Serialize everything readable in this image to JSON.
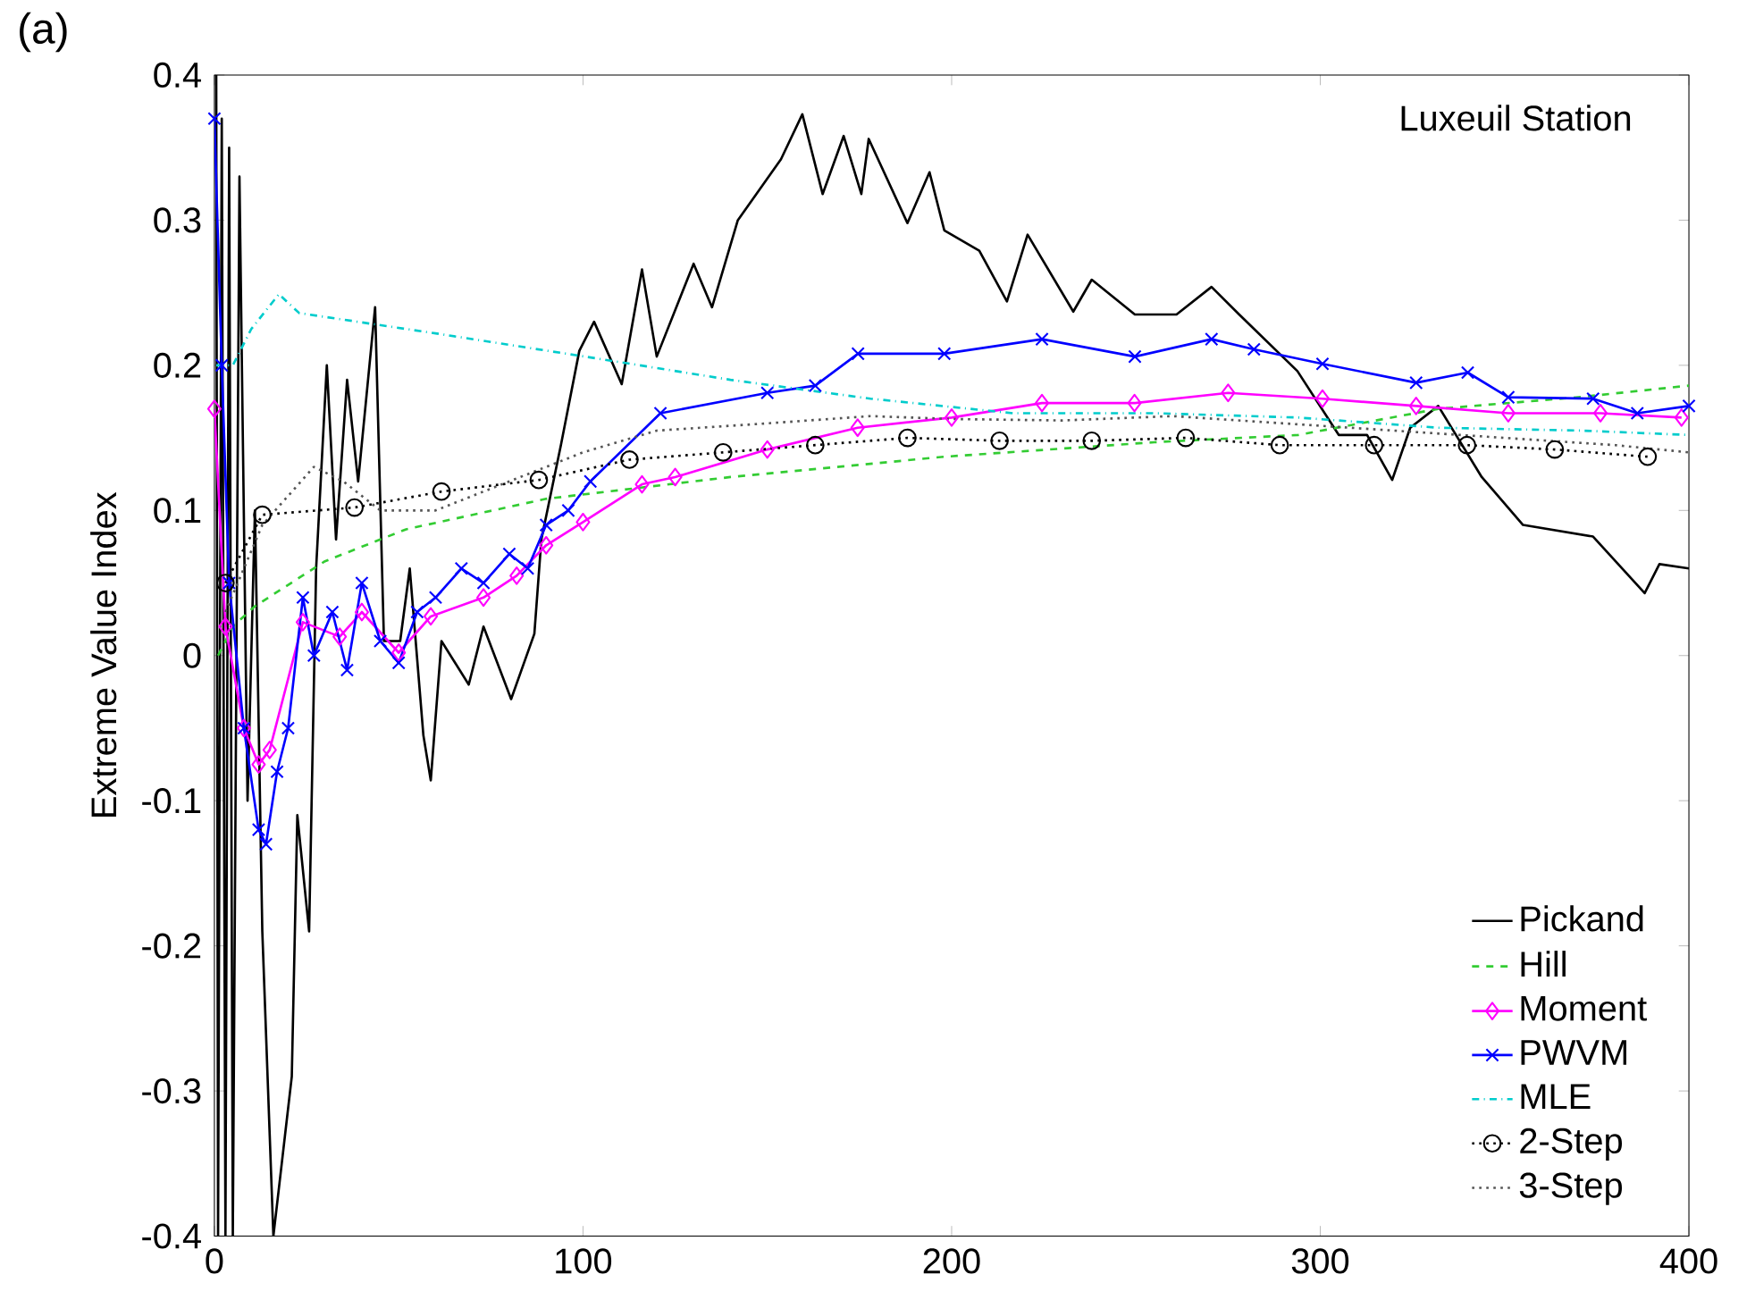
{
  "chart_data": {
    "type": "line",
    "title": "Luxeuil Station",
    "ylabel": "Extreme Value Index",
    "annotations": [
      "(a)"
    ],
    "xlim": [
      0,
      400
    ],
    "ylim": [
      -0.4,
      0.4
    ],
    "xticks": [
      0,
      100,
      200,
      300,
      400
    ],
    "yticks": [
      -0.4,
      -0.3,
      -0.2,
      -0.1,
      0,
      0.1,
      0.2,
      0.3,
      0.4
    ],
    "legend": "bottom right",
    "series": [
      {
        "name": "Pickand",
        "color": "#000000",
        "line_style": "solid",
        "marker": "none",
        "x": [
          0.5,
          1,
          2,
          3,
          4,
          5,
          6.8,
          9,
          11,
          13,
          16,
          21,
          22.5,
          25.7,
          27.6,
          30.5,
          33,
          36,
          39,
          43.6,
          46,
          50.4,
          53,
          56.7,
          58.7,
          61.6,
          69,
          73,
          80.5,
          86.8,
          88.7,
          94,
          99,
          103,
          110.5,
          116,
          120,
          130,
          135,
          142,
          153.7,
          159.5,
          165,
          170.7,
          175.5,
          177.5,
          188,
          194,
          198,
          207.5,
          215,
          220.6,
          233,
          238,
          249.7,
          261,
          270.5,
          278,
          293.8,
          305,
          312.7,
          319.5,
          324.4,
          332,
          343.8,
          355,
          374,
          388,
          392,
          400
        ],
        "values": [
          0.4,
          -0.4,
          0.37,
          -0.4,
          0.35,
          -0.4,
          0.33,
          -0.1,
          0.1,
          -0.19,
          -0.4,
          -0.29,
          -0.11,
          -0.19,
          0.06,
          0.2,
          0.08,
          0.19,
          0.12,
          0.24,
          0.01,
          0.01,
          0.06,
          -0.055,
          -0.086,
          0.01,
          -0.02,
          0.02,
          -0.03,
          0.015,
          0.08,
          0.145,
          0.21,
          0.23,
          0.187,
          0.266,
          0.206,
          0.27,
          0.24,
          0.3,
          0.342,
          0.373,
          0.318,
          0.358,
          0.318,
          0.356,
          0.298,
          0.333,
          0.293,
          0.279,
          0.244,
          0.29,
          0.237,
          0.259,
          0.235,
          0.235,
          0.254,
          0.235,
          0.196,
          0.152,
          0.152,
          0.121,
          0.157,
          0.172,
          0.123,
          0.09,
          0.082,
          0.043,
          0.063,
          0.06
        ]
      },
      {
        "name": "Hill",
        "color": "#33cc33",
        "line_style": "dashed",
        "marker": "none",
        "x": [
          1,
          5,
          11,
          30,
          52,
          90,
          140,
          198,
          255,
          294,
          332,
          370,
          400
        ],
        "values": [
          0.0,
          0.02,
          0.034,
          0.065,
          0.087,
          0.108,
          0.123,
          0.137,
          0.147,
          0.152,
          0.17,
          0.178,
          0.186
        ]
      },
      {
        "name": "Moment",
        "color": "#ff00ff",
        "line_style": "solid",
        "marker": "diamond",
        "x": [
          0,
          3,
          8,
          12,
          15,
          24,
          34,
          40,
          50,
          58.7,
          73,
          82,
          90,
          100,
          116,
          125,
          150,
          174.5,
          200,
          224.5,
          249.6,
          275,
          300.6,
          326,
          351,
          376,
          398
        ],
        "values": [
          0.17,
          0.02,
          -0.05,
          -0.075,
          -0.065,
          0.023,
          0.013,
          0.03,
          0.002,
          0.027,
          0.04,
          0.055,
          0.076,
          0.092,
          0.118,
          0.123,
          0.142,
          0.157,
          0.164,
          0.174,
          0.174,
          0.181,
          0.177,
          0.172,
          0.167,
          0.167,
          0.164
        ]
      },
      {
        "name": "PWVM",
        "color": "#0000ff",
        "line_style": "solid",
        "marker": "cross",
        "x": [
          0,
          2,
          4,
          8,
          12,
          14,
          17,
          20,
          24,
          27,
          32,
          36,
          40,
          45,
          50,
          55,
          60,
          67,
          73,
          80,
          85,
          90,
          96,
          102,
          121,
          150,
          163,
          174.6,
          198,
          224.5,
          249.7,
          270.5,
          282,
          300.6,
          326,
          340,
          351,
          374,
          386,
          400
        ],
        "values": [
          0.37,
          0.2,
          0.05,
          -0.05,
          -0.12,
          -0.13,
          -0.08,
          -0.05,
          0.04,
          0.0,
          0.03,
          -0.01,
          0.05,
          0.01,
          -0.005,
          0.03,
          0.04,
          0.06,
          0.05,
          0.07,
          0.06,
          0.09,
          0.1,
          0.12,
          0.167,
          0.181,
          0.186,
          0.208,
          0.208,
          0.218,
          0.206,
          0.218,
          0.211,
          0.201,
          0.188,
          0.195,
          0.178,
          0.177,
          0.167,
          0.172
        ]
      },
      {
        "name": "MLE",
        "color": "#00cccc",
        "line_style": "dashdot",
        "marker": "none",
        "x": [
          0.5,
          5,
          10,
          17.5,
          23,
          60,
          98,
          110.5,
          140,
          178,
          216.6,
          255,
          294,
          332,
          371,
          400
        ],
        "values": [
          0.2,
          0.2,
          0.225,
          0.249,
          0.236,
          0.222,
          0.207,
          0.202,
          0.19,
          0.177,
          0.167,
          0.167,
          0.164,
          0.157,
          0.155,
          0.152
        ]
      },
      {
        "name": "2-Step",
        "color": "#000000",
        "line_style": "dotted",
        "marker": "circle",
        "x": [
          3,
          13,
          38,
          61.6,
          88,
          112.6,
          138,
          163,
          188,
          213,
          238,
          263.5,
          289,
          314.6,
          339.8,
          363.6,
          388.8
        ],
        "values": [
          0.05,
          0.097,
          0.102,
          0.113,
          0.121,
          0.135,
          0.14,
          0.145,
          0.15,
          0.148,
          0.148,
          0.15,
          0.145,
          0.145,
          0.145,
          0.142,
          0.137
        ]
      },
      {
        "name": "3-Step",
        "color": "#555555",
        "line_style": "dotted",
        "marker": "none",
        "x": [
          3,
          8,
          13,
          20,
          27,
          35,
          45,
          60,
          80,
          100,
          120,
          150,
          178,
          200,
          230,
          260,
          290,
          320,
          350,
          380,
          400
        ],
        "values": [
          0.03,
          0.06,
          0.09,
          0.11,
          0.13,
          0.12,
          0.1,
          0.1,
          0.12,
          0.14,
          0.155,
          0.16,
          0.165,
          0.163,
          0.162,
          0.165,
          0.16,
          0.155,
          0.15,
          0.145,
          0.14
        ]
      }
    ]
  }
}
